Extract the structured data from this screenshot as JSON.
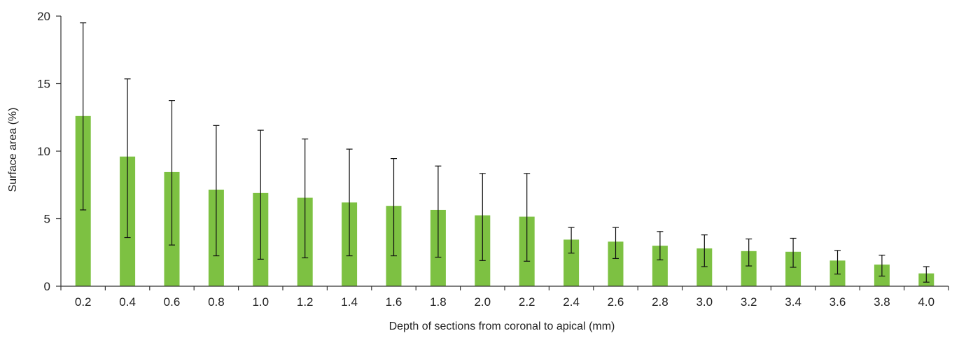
{
  "chart_data": {
    "type": "bar",
    "title": "",
    "xlabel": "Depth of sections from coronal to apical (mm)",
    "ylabel": "Surface area (%)",
    "ylim": [
      0,
      20
    ],
    "yticks": [
      0,
      5,
      10,
      15,
      20
    ],
    "grid": false,
    "categories": [
      "0.2",
      "0.4",
      "0.6",
      "0.8",
      "1.0",
      "1.2",
      "1.4",
      "1.6",
      "1.8",
      "2.0",
      "2.2",
      "2.4",
      "2.6",
      "2.8",
      "3.0",
      "3.2",
      "3.4",
      "3.6",
      "3.8",
      "4.0"
    ],
    "series": [
      {
        "values": [
          12.6,
          9.6,
          8.45,
          7.15,
          6.9,
          6.55,
          6.2,
          5.95,
          5.65,
          5.25,
          5.15,
          3.45,
          3.3,
          3.0,
          2.8,
          2.6,
          2.55,
          1.9,
          1.6,
          0.95
        ],
        "error_upper": [
          19.5,
          15.35,
          13.75,
          11.9,
          11.55,
          10.9,
          10.15,
          9.45,
          8.9,
          8.35,
          8.35,
          4.35,
          4.35,
          4.05,
          3.8,
          3.5,
          3.55,
          2.65,
          2.3,
          1.45
        ],
        "error_lower": [
          5.65,
          3.6,
          3.05,
          2.25,
          2.0,
          2.1,
          2.25,
          2.25,
          2.15,
          1.9,
          1.85,
          2.45,
          2.05,
          1.95,
          1.45,
          1.5,
          1.4,
          0.9,
          0.75,
          0.3
        ],
        "color": "#7dc142"
      }
    ],
    "axis_color": "#333333",
    "error_bar_color": "#111111"
  }
}
